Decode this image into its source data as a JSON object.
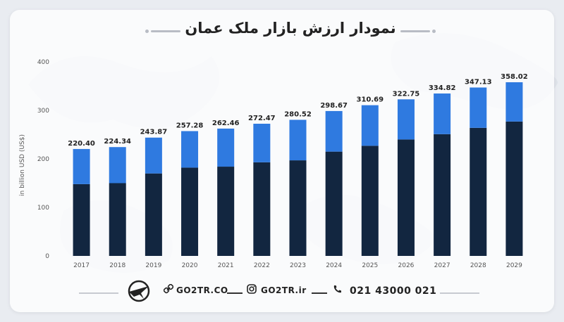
{
  "title": "نمودار ارزش بازار ملک عمان",
  "footer": {
    "site": "GO2TR.CO",
    "instagram": "GO2TR.ir",
    "phone": "021 43000 021"
  },
  "chart_data": {
    "type": "bar",
    "stacked": true,
    "ylabel": "in billion USD (US$)",
    "ylim": [
      0,
      400
    ],
    "yticks": [
      0,
      100,
      200,
      300,
      400
    ],
    "categories": [
      "2017",
      "2018",
      "2019",
      "2020",
      "2021",
      "2022",
      "2023",
      "2024",
      "2025",
      "2026",
      "2027",
      "2028",
      "2029"
    ],
    "totals": [
      220.4,
      224.34,
      243.87,
      257.28,
      262.46,
      272.47,
      280.52,
      298.67,
      310.69,
      322.75,
      334.82,
      347.13,
      358.02
    ],
    "series": [
      {
        "values": [
          148,
          150,
          170,
          182,
          184,
          193,
          197,
          215,
          227,
          240,
          251,
          264,
          277
        ],
        "color": "#122640"
      },
      {
        "values": [
          72.4,
          74.34,
          73.87,
          75.28,
          78.46,
          79.47,
          83.52,
          83.67,
          83.69,
          82.75,
          83.82,
          83.13,
          81.02
        ],
        "color": "#2f7ae0"
      }
    ],
    "grid": false,
    "label_color": "#222222"
  }
}
